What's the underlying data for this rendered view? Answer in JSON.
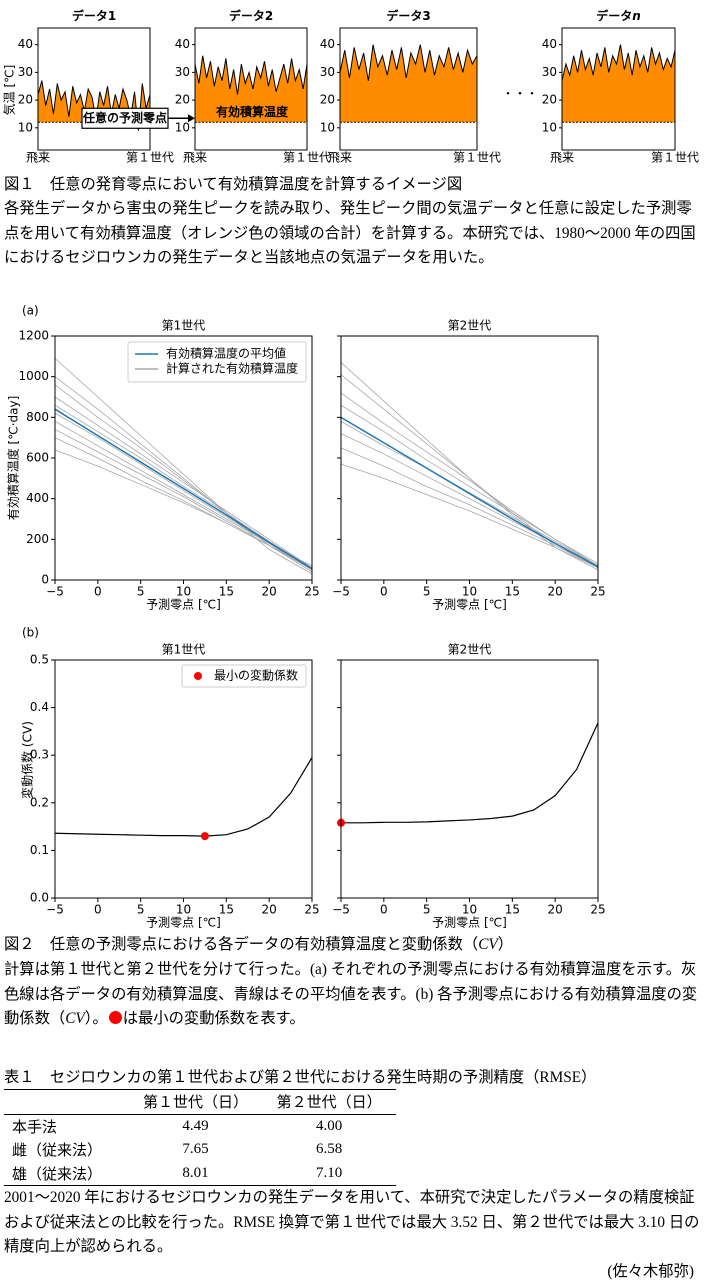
{
  "chart_data": [
    {
      "type": "line",
      "ylabel": "気温 [℃]",
      "ylim": [
        2,
        46
      ],
      "yticks": [
        10,
        20,
        30,
        40
      ],
      "threshold": 12,
      "x_labels": [
        "飛来",
        "第１世代"
      ],
      "fill_color": "#ff8c00",
      "line_color": "#000000",
      "panels": [
        {
          "title": "データ1",
          "values": [
            22,
            27,
            18,
            24,
            15,
            26,
            20,
            23,
            14,
            25,
            19,
            22,
            16,
            24,
            21,
            13,
            23,
            18,
            25,
            15,
            22,
            17,
            24,
            20,
            14,
            23,
            9,
            26,
            17,
            22
          ]
        },
        {
          "title": "データ2",
          "values": [
            33,
            26,
            36,
            28,
            34,
            25,
            32,
            27,
            35,
            24,
            31,
            22,
            33,
            26,
            30,
            24,
            32,
            28,
            34,
            25,
            31,
            23,
            28,
            33,
            26,
            35,
            27,
            31,
            24,
            33
          ]
        },
        {
          "title": "データ3",
          "values": [
            30,
            38,
            28,
            39,
            31,
            37,
            27,
            40,
            32,
            36,
            29,
            38,
            31,
            39,
            28,
            37,
            33,
            40,
            30,
            38,
            29,
            36,
            32,
            39,
            31,
            37,
            30,
            38,
            33,
            36
          ]
        },
        {
          "title": "データ",
          "title_italic": "n",
          "values": [
            27,
            33,
            29,
            36,
            30,
            38,
            31,
            35,
            29,
            37,
            32,
            39,
            30,
            36,
            33,
            40,
            31,
            37,
            29,
            38,
            32,
            36,
            30,
            39,
            33,
            37,
            31,
            35,
            32,
            38
          ]
        }
      ],
      "annotations": {
        "zero": "任意の予測零点",
        "area": "有効積算温度",
        "ellipsis": "・・・"
      }
    },
    {
      "type": "line",
      "label": "(a)",
      "xlabel": "予測零点 [℃]",
      "ylabel": "有効積算温度 [℃·day]",
      "x": [
        -5,
        0,
        5,
        10,
        15,
        20,
        25
      ],
      "xlim": [
        -5,
        25
      ],
      "xticks": [
        {
          "value": -5,
          "label": "−5"
        },
        0,
        5,
        10,
        15,
        20,
        25
      ],
      "ylim": [
        0,
        1200
      ],
      "yticks": [
        0,
        200,
        400,
        600,
        800,
        1000,
        1200
      ],
      "legend": "upper center",
      "panels": [
        {
          "title": "第1世代",
          "lines": {
            "name": "計算された有効積算温度",
            "color": "#a8a8a8",
            "series": [
              [
                1090,
                900,
                710,
                520,
                330,
                150,
                30
              ],
              [
                1000,
                840,
                670,
                500,
                330,
                170,
                40
              ],
              [
                960,
                800,
                650,
                490,
                330,
                180,
                50
              ],
              [
                900,
                760,
                620,
                480,
                340,
                200,
                60
              ],
              [
                860,
                730,
                600,
                460,
                330,
                190,
                60
              ],
              [
                820,
                700,
                570,
                440,
                310,
                180,
                50
              ],
              [
                780,
                660,
                540,
                420,
                300,
                180,
                60
              ],
              [
                740,
                630,
                520,
                410,
                290,
                170,
                50
              ],
              [
                700,
                600,
                490,
                390,
                280,
                170,
                60
              ],
              [
                640,
                560,
                470,
                380,
                280,
                170,
                70
              ]
            ]
          },
          "mean": {
            "name": "有効積算温度の平均値",
            "color": "#1f77b4",
            "values": [
              840,
              710,
              580,
              450,
              320,
              185,
              55
            ]
          }
        },
        {
          "title": "第2世代",
          "lines": {
            "color": "#a8a8a8",
            "series": [
              [
                1070,
                880,
                690,
                500,
                320,
                160,
                50
              ],
              [
                1010,
                840,
                670,
                500,
                330,
                170,
                60
              ],
              [
                920,
                770,
                630,
                490,
                340,
                200,
                80
              ],
              [
                860,
                730,
                590,
                460,
                330,
                200,
                70
              ],
              [
                780,
                660,
                550,
                430,
                310,
                190,
                70
              ],
              [
                720,
                620,
                510,
                400,
                290,
                180,
                70
              ],
              [
                650,
                560,
                460,
                370,
                270,
                170,
                70
              ],
              [
                570,
                500,
                420,
                340,
                250,
                160,
                60
              ]
            ]
          },
          "mean": {
            "color": "#1f77b4",
            "values": [
              800,
              675,
              550,
              425,
              300,
              180,
              65
            ]
          }
        }
      ]
    },
    {
      "type": "line",
      "label": "(b)",
      "xlabel": "予測零点 [℃]",
      "ylabel": "変動係数 (CV)",
      "x": [
        -5,
        -2.5,
        0,
        2.5,
        5,
        7.5,
        10,
        12.5,
        15,
        17.5,
        20,
        22.5,
        25
      ],
      "xlim": [
        -5,
        25
      ],
      "xticks": [
        {
          "value": -5,
          "label": "−5"
        },
        0,
        5,
        10,
        15,
        20,
        25
      ],
      "ylim": [
        0,
        0.5
      ],
      "yticks": [
        {
          "value": 0,
          "label": "0.0"
        },
        0.1,
        0.2,
        0.3,
        0.4,
        0.5
      ],
      "legend": "upper center",
      "legend_name": "最小の変動係数",
      "marker_color": "#ff0000",
      "line_color": "#000000",
      "panels": [
        {
          "title": "第1世代",
          "values": [
            0.136,
            0.135,
            0.134,
            0.133,
            0.132,
            0.131,
            0.131,
            0.13,
            0.133,
            0.145,
            0.17,
            0.22,
            0.295
          ],
          "min_point": {
            "x": 12.5,
            "y": 0.13
          }
        },
        {
          "title": "第2世代",
          "values": [
            0.158,
            0.158,
            0.159,
            0.159,
            0.16,
            0.162,
            0.164,
            0.167,
            0.172,
            0.185,
            0.215,
            0.27,
            0.368
          ],
          "min_point": {
            "x": -5,
            "y": 0.158
          }
        }
      ]
    }
  ],
  "captions": {
    "fig1_title": "図１　任意の発育零点において有効積算温度を計算するイメージ図",
    "fig1_text": "各発生データから害虫の発生ピークを読み取り、発生ピーク間の気温データと任意に設定した予測零点を用いて有効積算温度（オレンジ色の領域の合計）を計算する。本研究では、1980～2000 年の四国におけるセジロウンカの発生データと当該地点の気温データを用いた。",
    "fig2_title": [
      "図２　任意の予測零点における各データの有効積算温度と変動係数（",
      "CV",
      "）"
    ],
    "fig2_text": [
      "計算は第１世代と第２世代を分けて行った。(a) それぞれの予測零点における有効積算温度を示す。灰色線は各データの有効積算温度、青線はその平均値を表す。(b) 各予測零点における有効積算温度の変動係数（",
      "CV",
      "）。",
      "は最小の変動係数を表す。"
    ]
  },
  "table": {
    "title": "表１　セジロウンカの第１世代および第２世代における発生時期の予測精度（RMSE）",
    "header": [
      "第１世代（日）",
      "第２世代（日）"
    ],
    "rows": [
      {
        "label": "本手法",
        "values": [
          "4.49",
          "4.00"
        ]
      },
      {
        "label": "雌（従来法）",
        "values": [
          "7.65",
          "6.58"
        ]
      },
      {
        "label": "雄（従来法）",
        "values": [
          "8.01",
          "7.10"
        ]
      }
    ]
  },
  "notes": "2001～2020 年におけるセジロウンカの発生データを用いて、本研究で決定したパラメータの精度検証および従来法との比較を行った。RMSE 換算で第１世代では最大 3.52 日、第２世代では最大 3.10 日の精度向上が認められる。",
  "author": "(佐々木郁弥)"
}
